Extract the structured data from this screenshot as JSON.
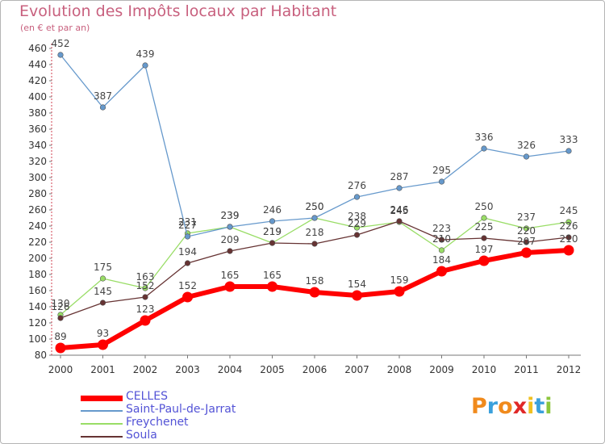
{
  "header": {
    "title": "Evolution des Impôts locaux par Habitant",
    "subtitle": "(en € et par an)"
  },
  "logo": {
    "text": "Proxiti"
  },
  "chart_data": {
    "type": "line",
    "title": "Evolution des Impôts locaux par Habitant",
    "ylabel": "(en € et par an)",
    "xlabel": "",
    "grid": false,
    "ylim": [
      80,
      460
    ],
    "yticks": [
      "80",
      "100",
      "120",
      "140",
      "160",
      "180",
      "200",
      "220",
      "240",
      "260",
      "280",
      "300",
      "320",
      "340",
      "360",
      "380",
      "400",
      "420",
      "440",
      "460"
    ],
    "categories": [
      "2000",
      "2001",
      "2002",
      "2003",
      "2004",
      "2005",
      "2006",
      "2007",
      "2008",
      "2009",
      "2010",
      "2011",
      "2012"
    ],
    "series": [
      {
        "name": "CELLES",
        "color": "#ff0000",
        "values": [
          89,
          93,
          123,
          152,
          165,
          165,
          158,
          154,
          159,
          184,
          197,
          207,
          210
        ],
        "labels": [
          "89",
          "93",
          "123",
          "152",
          "165",
          "165",
          "158",
          "154",
          "159",
          "184",
          "197",
          "207",
          "210"
        ]
      },
      {
        "name": "Saint-Paul-de-Jarrat",
        "color": "#6699cc",
        "values": [
          452,
          387,
          439,
          227,
          239,
          246,
          250,
          276,
          287,
          295,
          336,
          326,
          333
        ],
        "labels": [
          "452",
          "387",
          "439",
          "227",
          "239",
          "246",
          "250",
          "276",
          "287",
          "295",
          "336",
          "326",
          "333"
        ]
      },
      {
        "name": "Freychenet",
        "color": "#99dd66",
        "values": [
          130,
          175,
          163,
          231,
          239,
          219,
          250,
          238,
          245,
          210,
          250,
          237,
          245
        ],
        "labels": [
          "130",
          "175",
          "163",
          "231",
          "239",
          "219",
          "250",
          "238",
          "245",
          "210",
          "250",
          "237",
          "245"
        ]
      },
      {
        "name": "Soula",
        "color": "#663333",
        "values": [
          126,
          145,
          152,
          194,
          209,
          219,
          218,
          229,
          246,
          223,
          225,
          220,
          226
        ],
        "labels": [
          "126",
          "145",
          "152",
          "194",
          "209",
          "219",
          "218",
          "229",
          "246",
          "223",
          "225",
          "220",
          "226"
        ]
      }
    ]
  }
}
